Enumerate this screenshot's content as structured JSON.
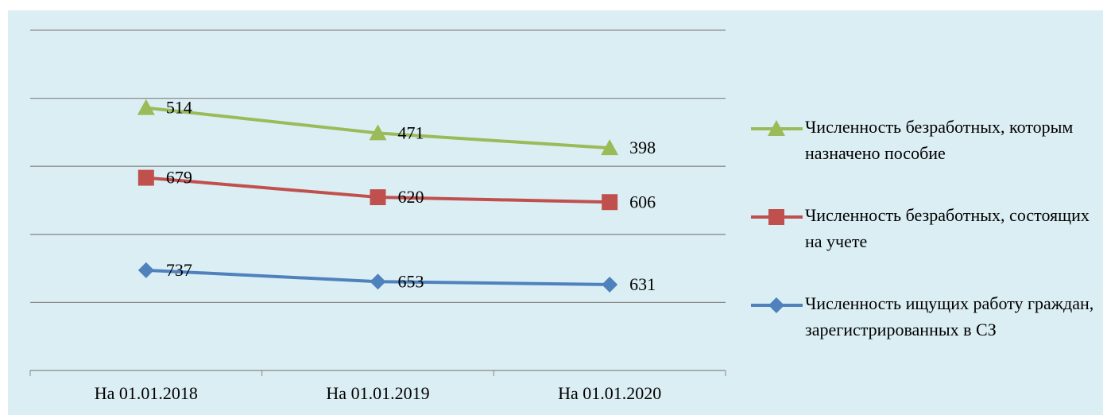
{
  "chart_data": {
    "type": "line",
    "stacked": true,
    "categories": [
      "На 01.01.2018",
      "На 01.01.2019",
      "На 01.01.2020"
    ],
    "series": [
      {
        "name": "Численность ищущих работу граждан, зарегистрированных в СЗ",
        "color": "#4f81bd",
        "marker": "diamond",
        "values": [
          737,
          653,
          631
        ]
      },
      {
        "name": "Численность безработных, состоящих на учете",
        "color": "#c0504d",
        "marker": "square",
        "values": [
          679,
          620,
          606
        ]
      },
      {
        "name": "Численность безработных, которым назначено пособие",
        "color": "#9bbb59",
        "marker": "triangle",
        "values": [
          514,
          471,
          398
        ]
      }
    ],
    "ylim": [
      0,
      2500
    ],
    "yticks": [
      0,
      500,
      1000,
      1500,
      2000,
      2500
    ],
    "grid": true,
    "legend": "right"
  }
}
